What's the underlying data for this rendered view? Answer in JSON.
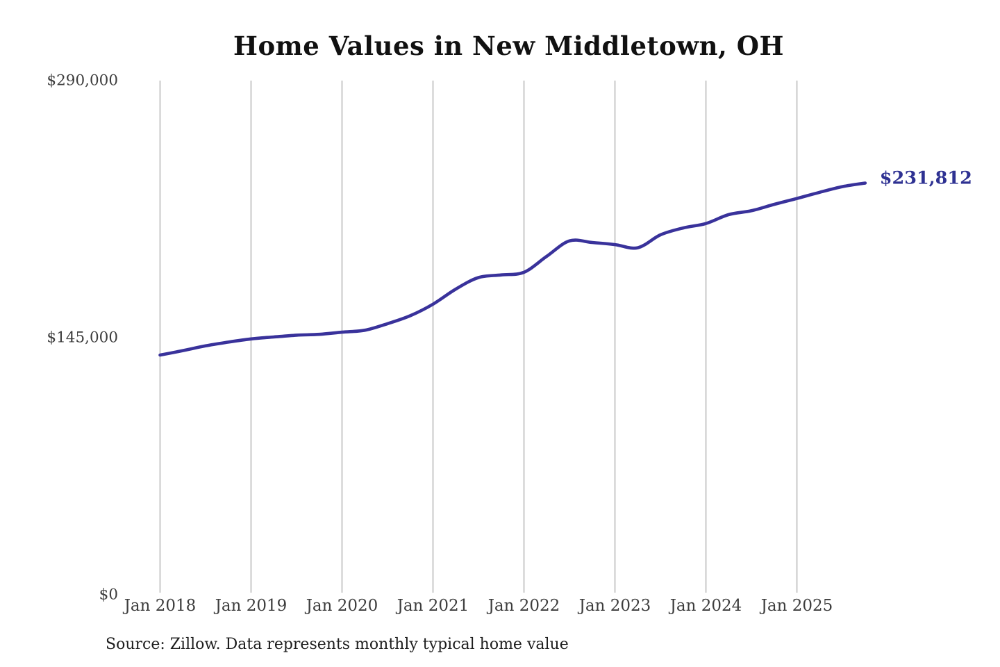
{
  "page": {
    "title": "Home Values in New Middletown, OH",
    "source_note": "Source: Zillow. Data represents monthly typical home value",
    "latest_value_label": "$231,812"
  },
  "colors": {
    "background": "#ffffff",
    "line": "#39329b",
    "latest_label": "#2e3192",
    "grid": "#c9c9c9",
    "tick_label": "#3d3d3d",
    "title": "#111111",
    "source": "#1d1d1d"
  },
  "chart_data": {
    "type": "line",
    "title": "Home Values in New Middletown, OH",
    "xlabel": "",
    "ylabel": "",
    "ylim": [
      0,
      290000
    ],
    "xlim": [
      "2018-01",
      "2026-03"
    ],
    "grid": "vertical-only",
    "legend": "none",
    "y_ticks": [
      {
        "value": 0,
        "label": "$0"
      },
      {
        "value": 145000,
        "label": "$145,000"
      },
      {
        "value": 290000,
        "label": "$290,000"
      }
    ],
    "x_ticks": [
      {
        "x": "2018-01",
        "label": "Jan 2018"
      },
      {
        "x": "2019-01",
        "label": "Jan 2019"
      },
      {
        "x": "2020-01",
        "label": "Jan 2020"
      },
      {
        "x": "2021-01",
        "label": "Jan 2021"
      },
      {
        "x": "2022-01",
        "label": "Jan 2022"
      },
      {
        "x": "2023-01",
        "label": "Jan 2023"
      },
      {
        "x": "2024-01",
        "label": "Jan 2024"
      },
      {
        "x": "2025-01",
        "label": "Jan 2025"
      }
    ],
    "series": [
      {
        "name": "Monthly typical home value",
        "color": "#39329b",
        "points": [
          {
            "date": "2018-01",
            "value": 134800
          },
          {
            "date": "2018-04",
            "value": 137300
          },
          {
            "date": "2018-07",
            "value": 140000
          },
          {
            "date": "2018-10",
            "value": 142100
          },
          {
            "date": "2019-01",
            "value": 143900
          },
          {
            "date": "2019-04",
            "value": 145000
          },
          {
            "date": "2019-07",
            "value": 146000
          },
          {
            "date": "2019-10",
            "value": 146500
          },
          {
            "date": "2020-01",
            "value": 147700
          },
          {
            "date": "2020-04",
            "value": 148800
          },
          {
            "date": "2020-07",
            "value": 152500
          },
          {
            "date": "2020-10",
            "value": 157000
          },
          {
            "date": "2021-01",
            "value": 163500
          },
          {
            "date": "2021-04",
            "value": 172000
          },
          {
            "date": "2021-07",
            "value": 178500
          },
          {
            "date": "2021-10",
            "value": 180000
          },
          {
            "date": "2022-01",
            "value": 181500
          },
          {
            "date": "2022-04",
            "value": 190500
          },
          {
            "date": "2022-07",
            "value": 199200
          },
          {
            "date": "2022-10",
            "value": 198300
          },
          {
            "date": "2023-01",
            "value": 197100
          },
          {
            "date": "2023-04",
            "value": 195300
          },
          {
            "date": "2023-07",
            "value": 202600
          },
          {
            "date": "2023-10",
            "value": 206500
          },
          {
            "date": "2024-01",
            "value": 209000
          },
          {
            "date": "2024-04",
            "value": 214000
          },
          {
            "date": "2024-07",
            "value": 216200
          },
          {
            "date": "2024-10",
            "value": 219800
          },
          {
            "date": "2025-01",
            "value": 223100
          },
          {
            "date": "2025-04",
            "value": 226600
          },
          {
            "date": "2025-07",
            "value": 229800
          },
          {
            "date": "2025-10",
            "value": 231812
          }
        ]
      }
    ],
    "end_annotation": {
      "text": "$231,812",
      "date": "2025-10",
      "value": 231812
    }
  }
}
